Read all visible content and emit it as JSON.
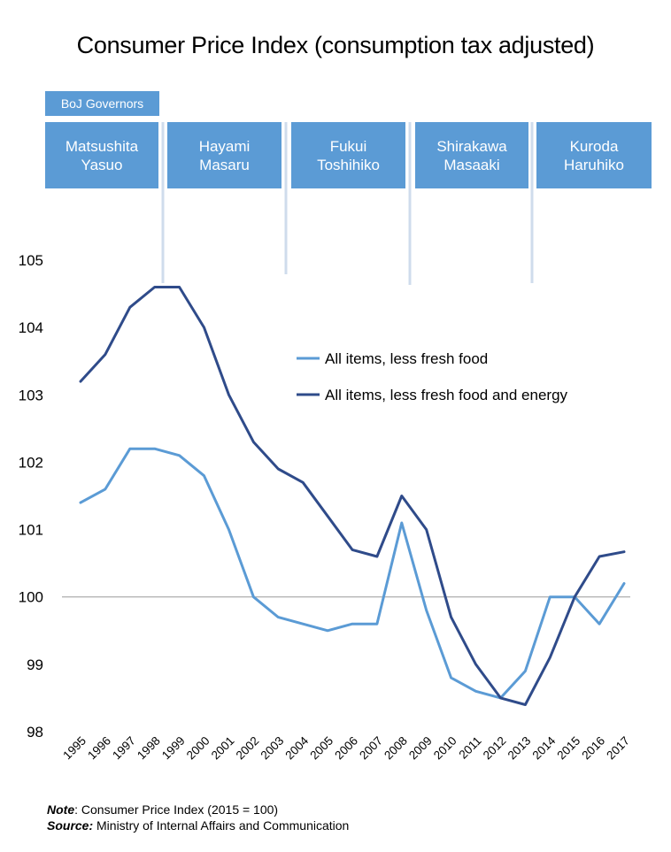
{
  "chart_data": {
    "type": "line",
    "title": "Consumer Price Index (consumption tax adjusted)",
    "x": [
      "1995",
      "1996",
      "1997",
      "1998",
      "1999",
      "2000",
      "2001",
      "2002",
      "2003",
      "2004",
      "2005",
      "2006",
      "2007",
      "2008",
      "2009",
      "2010",
      "2011",
      "2012",
      "2013",
      "2014",
      "2015",
      "2016",
      "2017"
    ],
    "series": [
      {
        "name": "All items, less fresh food",
        "color": "#5b9bd5",
        "values": [
          101.4,
          101.6,
          102.2,
          102.2,
          102.1,
          101.8,
          101.0,
          100.0,
          99.7,
          99.6,
          99.5,
          99.6,
          99.6,
          101.1,
          99.8,
          98.8,
          98.6,
          98.5,
          98.9,
          100.0,
          100.0,
          99.6,
          100.2
        ]
      },
      {
        "name": "All items, less fresh food and energy",
        "color": "#2f4b8a",
        "values": [
          103.2,
          103.6,
          104.3,
          104.6,
          104.6,
          104.0,
          103.0,
          102.3,
          101.9,
          101.7,
          101.2,
          100.7,
          100.6,
          101.5,
          101.0,
          99.7,
          99.0,
          98.5,
          98.4,
          99.1,
          100.0,
          100.6,
          100.67
        ]
      }
    ],
    "ylim": [
      98,
      105
    ],
    "yticks": [
      "98",
      "99",
      "100",
      "101",
      "102",
      "103",
      "104",
      "105"
    ],
    "reference_line": 100,
    "legend_position": "right",
    "grid": false
  },
  "governors": {
    "header": "BoJ Governors",
    "color": "#5b9bd5",
    "items": [
      {
        "line1": "Matsushita",
        "line2": "Yasuo"
      },
      {
        "line1": "Hayami",
        "line2": "Masaru"
      },
      {
        "line1": "Fukui",
        "line2": "Toshihiko"
      },
      {
        "line1": "Shirakawa",
        "line2": "Masaaki"
      },
      {
        "line1": "Kuroda",
        "line2": "Haruhiko"
      }
    ]
  },
  "notes": {
    "note_label": "Note",
    "note_text": ": Consumer Price Index (2015 = 100)",
    "source_label": "Source:",
    "source_text": " Ministry of Internal Affairs and Communication"
  }
}
